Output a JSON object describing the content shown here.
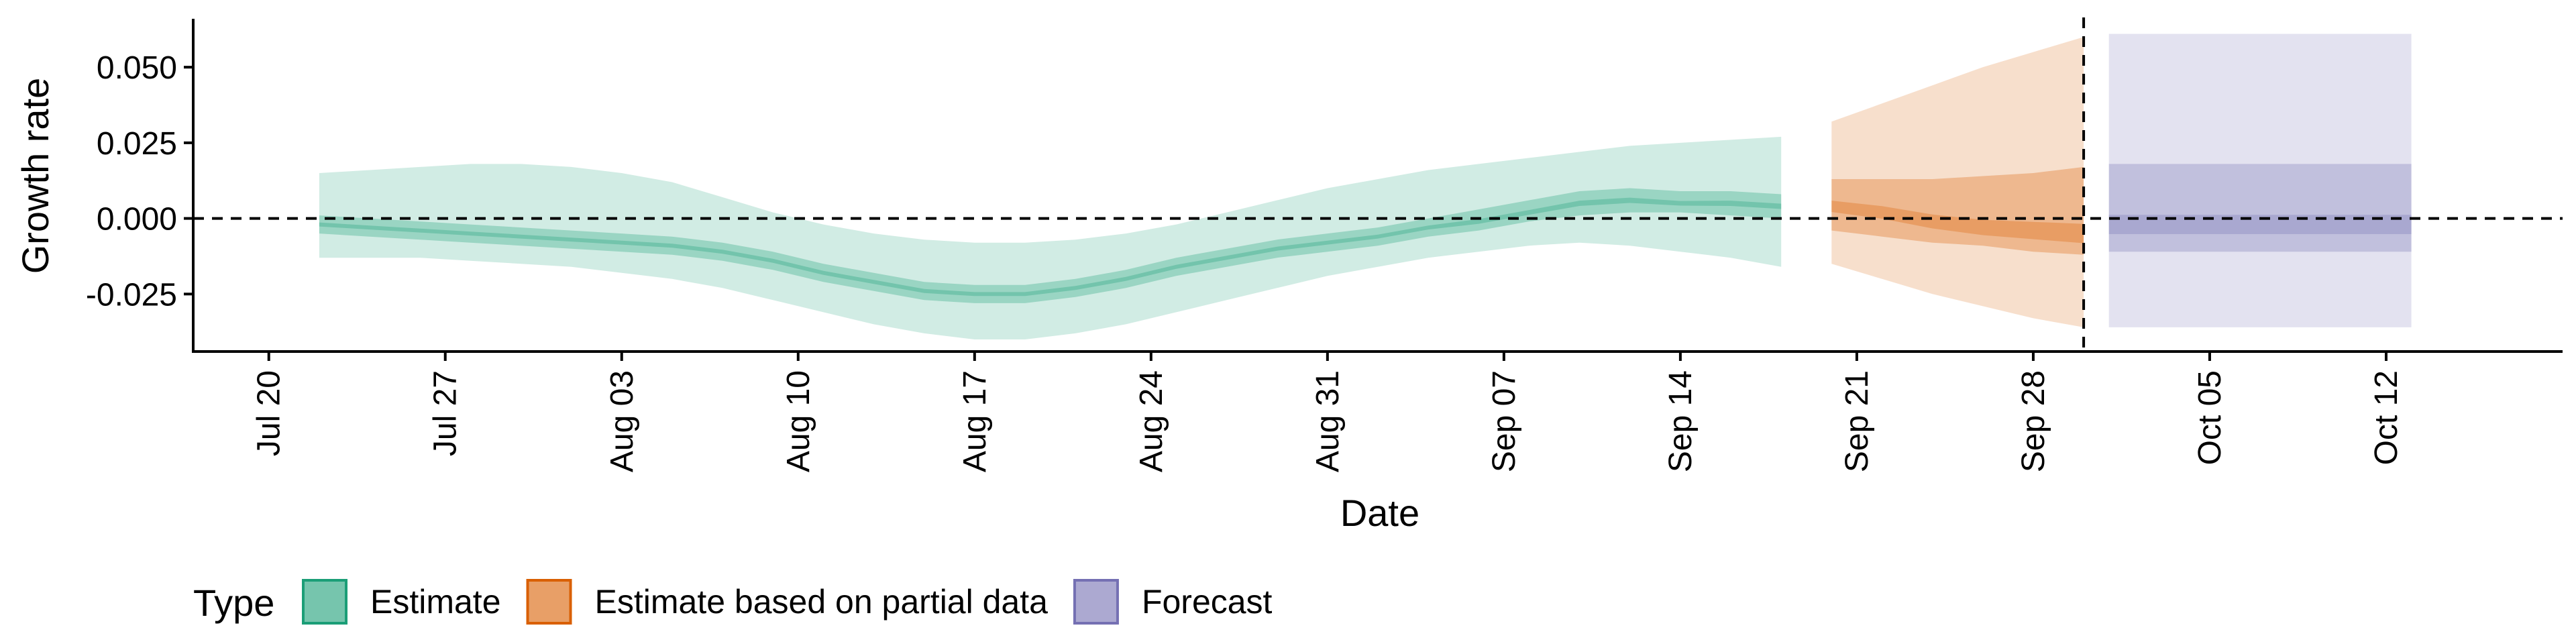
{
  "chart_data": {
    "type": "area",
    "title": "",
    "xlabel": "Date",
    "ylabel": "Growth rate",
    "x_ticks": [
      "Jul 20",
      "Jul 27",
      "Aug 03",
      "Aug 10",
      "Aug 17",
      "Aug 24",
      "Aug 31",
      "Sep 07",
      "Sep 14",
      "Sep 21",
      "Sep 28",
      "Oct 05",
      "Oct 12"
    ],
    "y_ticks": [
      "-0.025",
      "0.000",
      "0.025",
      "0.050"
    ],
    "y_tick_values": [
      -0.025,
      0.0,
      0.025,
      0.05
    ],
    "ylim": [
      -0.044,
      0.066
    ],
    "xlim": [
      "2020-07-17",
      "2020-10-19"
    ],
    "reference_line_y": 0.0,
    "forecast_start_date": "2020-09-30",
    "grid": false,
    "legend": {
      "title": "Type",
      "position": "bottom-left",
      "items": [
        {
          "label": "Estimate",
          "color": "#1B9E77"
        },
        {
          "label": "Estimate based on partial data",
          "color": "#D95F02"
        },
        {
          "label": "Forecast",
          "color": "#7570B3"
        }
      ]
    },
    "series": [
      {
        "name": "Estimate",
        "color": "#1B9E77",
        "x": [
          "2020-07-22",
          "2020-07-24",
          "2020-07-26",
          "2020-07-28",
          "2020-07-30",
          "2020-08-01",
          "2020-08-03",
          "2020-08-05",
          "2020-08-07",
          "2020-08-09",
          "2020-08-11",
          "2020-08-13",
          "2020-08-15",
          "2020-08-17",
          "2020-08-19",
          "2020-08-21",
          "2020-08-23",
          "2020-08-25",
          "2020-08-27",
          "2020-08-29",
          "2020-08-31",
          "2020-09-02",
          "2020-09-04",
          "2020-09-06",
          "2020-09-08",
          "2020-09-10",
          "2020-09-12",
          "2020-09-14",
          "2020-09-16",
          "2020-09-18"
        ],
        "median": [
          -0.002,
          -0.003,
          -0.004,
          -0.005,
          -0.006,
          -0.007,
          -0.008,
          -0.009,
          -0.011,
          -0.014,
          -0.018,
          -0.021,
          -0.024,
          -0.025,
          -0.025,
          -0.023,
          -0.02,
          -0.016,
          -0.013,
          -0.01,
          -0.008,
          -0.006,
          -0.003,
          -0.001,
          0.002,
          0.005,
          0.006,
          0.005,
          0.005,
          0.004
        ],
        "lower_50": [
          -0.005,
          -0.006,
          -0.007,
          -0.008,
          -0.009,
          -0.01,
          -0.011,
          -0.012,
          -0.014,
          -0.017,
          -0.021,
          -0.024,
          -0.027,
          -0.028,
          -0.028,
          -0.026,
          -0.023,
          -0.019,
          -0.016,
          -0.013,
          -0.011,
          -0.009,
          -0.006,
          -0.004,
          -0.001,
          0.001,
          0.002,
          0.002,
          0.001,
          0.0
        ],
        "upper_50": [
          0.001,
          0.0,
          -0.001,
          -0.002,
          -0.003,
          -0.004,
          -0.005,
          -0.006,
          -0.008,
          -0.011,
          -0.015,
          -0.018,
          -0.021,
          -0.022,
          -0.022,
          -0.02,
          -0.017,
          -0.013,
          -0.01,
          -0.007,
          -0.005,
          -0.003,
          0.0,
          0.003,
          0.006,
          0.009,
          0.01,
          0.009,
          0.009,
          0.008
        ],
        "lower_90": [
          -0.013,
          -0.013,
          -0.013,
          -0.014,
          -0.015,
          -0.016,
          -0.018,
          -0.02,
          -0.023,
          -0.027,
          -0.031,
          -0.035,
          -0.038,
          -0.04,
          -0.04,
          -0.038,
          -0.035,
          -0.031,
          -0.027,
          -0.023,
          -0.019,
          -0.016,
          -0.013,
          -0.011,
          -0.009,
          -0.008,
          -0.009,
          -0.011,
          -0.013,
          -0.016
        ],
        "upper_90": [
          0.015,
          0.016,
          0.017,
          0.018,
          0.018,
          0.017,
          0.015,
          0.012,
          0.007,
          0.002,
          -0.002,
          -0.005,
          -0.007,
          -0.008,
          -0.008,
          -0.007,
          -0.005,
          -0.002,
          0.002,
          0.006,
          0.01,
          0.013,
          0.016,
          0.018,
          0.02,
          0.022,
          0.024,
          0.025,
          0.026,
          0.027
        ]
      },
      {
        "name": "Estimate based on partial data",
        "color": "#D95F02",
        "x": [
          "2020-09-20",
          "2020-09-22",
          "2020-09-24",
          "2020-09-26",
          "2020-09-28",
          "2020-09-30"
        ],
        "median": [
          0.004,
          0.002,
          -0.001,
          -0.003,
          -0.004,
          -0.005
        ],
        "lower_50": [
          -0.004,
          -0.006,
          -0.008,
          -0.009,
          -0.011,
          -0.012
        ],
        "upper_50": [
          0.013,
          0.013,
          0.013,
          0.014,
          0.015,
          0.017
        ],
        "lower_90": [
          -0.015,
          -0.02,
          -0.025,
          -0.029,
          -0.033,
          -0.036
        ],
        "upper_90": [
          0.032,
          0.038,
          0.044,
          0.05,
          0.055,
          0.06
        ]
      },
      {
        "name": "Forecast",
        "color": "#7570B3",
        "x": [
          "2020-10-01",
          "2020-10-13"
        ],
        "median": [
          -0.002,
          -0.002
        ],
        "lower_50": [
          -0.011,
          -0.011
        ],
        "upper_50": [
          0.018,
          0.018
        ],
        "lower_90": [
          -0.036,
          -0.036
        ],
        "upper_90": [
          0.061,
          0.061
        ]
      }
    ]
  }
}
